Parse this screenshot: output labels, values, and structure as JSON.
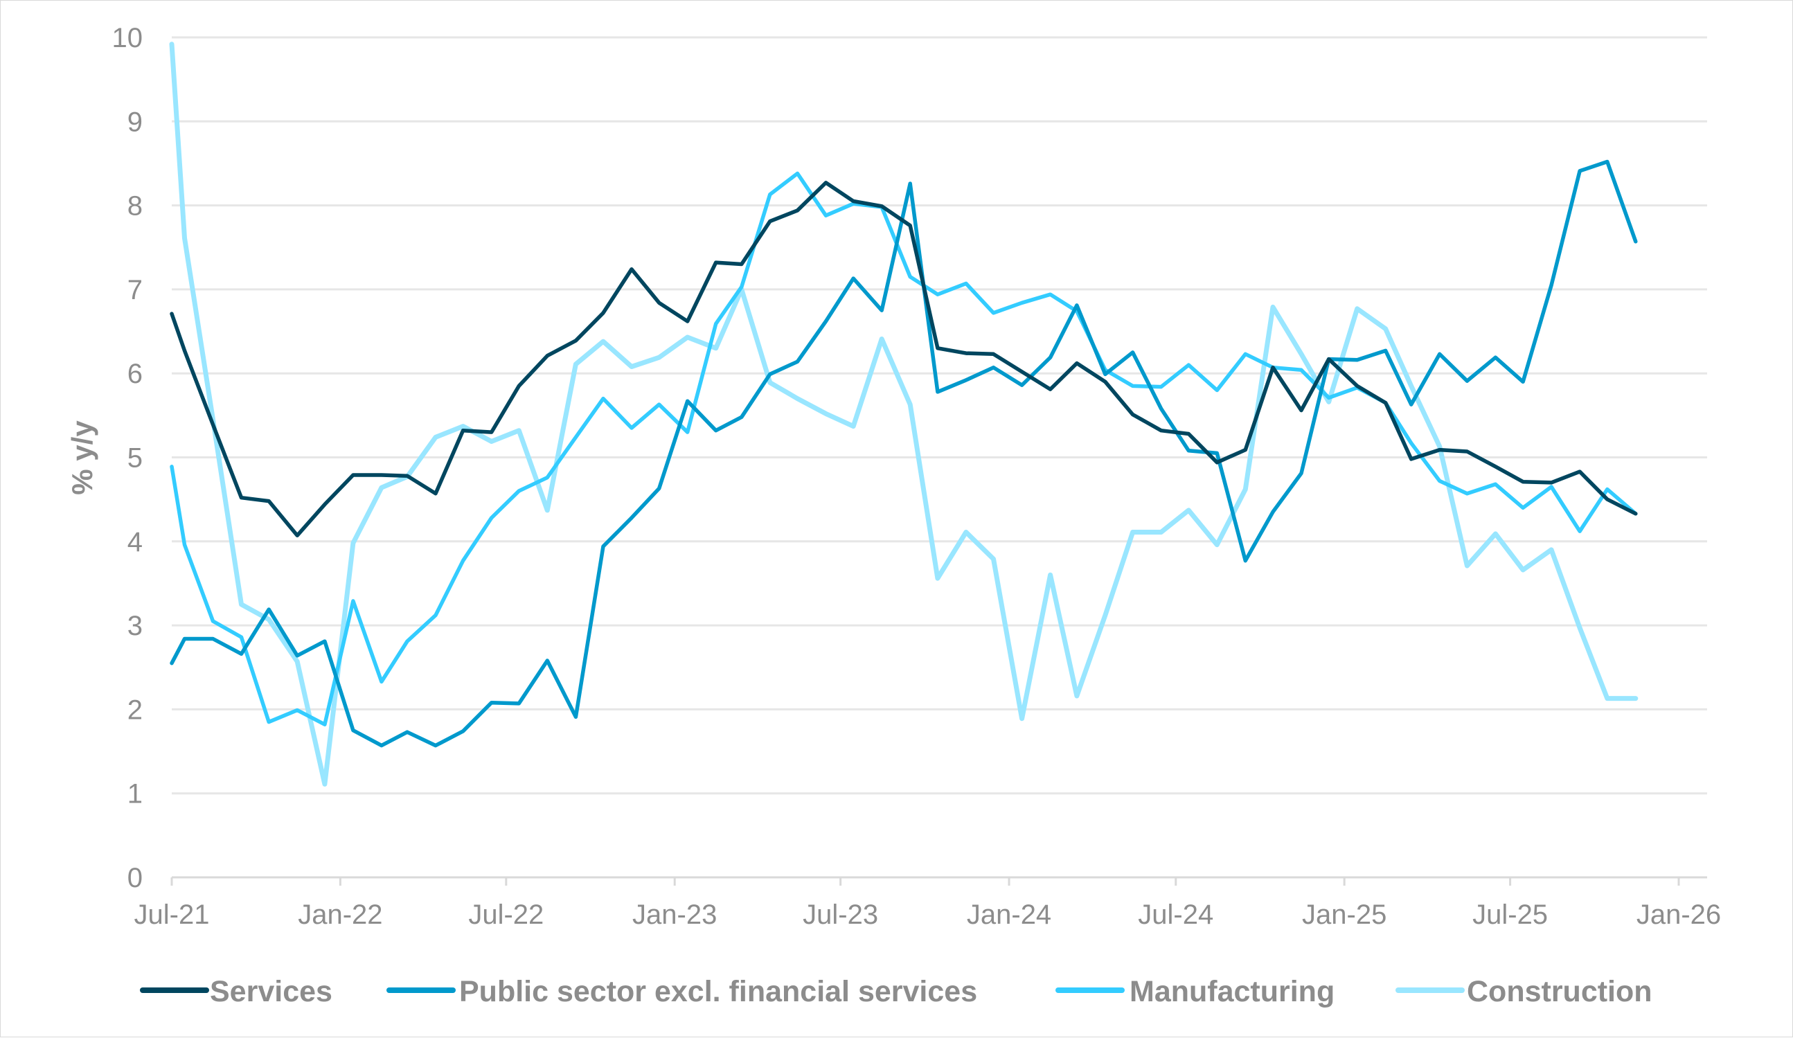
{
  "chart_data": {
    "type": "line",
    "title": "",
    "xlabel": "",
    "ylabel": "% y/y",
    "ylim": [
      0,
      10
    ],
    "y_ticks": [
      "0",
      "1",
      "2",
      "3",
      "4",
      "5",
      "6",
      "7",
      "8",
      "9",
      "10"
    ],
    "xlim": [
      "2021-07-01",
      "2026-02-01"
    ],
    "x_ticks": [
      {
        "date": "2021-07-01",
        "label": "Jul-21"
      },
      {
        "date": "2022-01-01",
        "label": "Jan-22"
      },
      {
        "date": "2022-07-01",
        "label": "Jul-22"
      },
      {
        "date": "2023-01-01",
        "label": "Jan-23"
      },
      {
        "date": "2023-07-01",
        "label": "Jul-23"
      },
      {
        "date": "2024-01-01",
        "label": "Jan-24"
      },
      {
        "date": "2024-07-01",
        "label": "Jul-24"
      },
      {
        "date": "2025-01-01",
        "label": "Jan-25"
      },
      {
        "date": "2025-07-01",
        "label": "Jul-25"
      },
      {
        "date": "2026-01-01",
        "label": "Jan-26"
      }
    ],
    "grid": "horizontal",
    "legend_position": "bottom",
    "x": [
      "2021-07-01",
      "2021-07-15",
      "2021-08-15",
      "2021-09-15",
      "2021-10-15",
      "2021-11-15",
      "2021-12-15",
      "2022-01-15",
      "2022-02-15",
      "2022-03-15",
      "2022-04-15",
      "2022-05-15",
      "2022-06-15",
      "2022-07-15",
      "2022-08-15",
      "2022-09-15",
      "2022-10-15",
      "2022-11-15",
      "2022-12-15",
      "2023-01-15",
      "2023-02-15",
      "2023-03-15",
      "2023-04-15",
      "2023-05-15",
      "2023-06-15",
      "2023-07-15",
      "2023-08-15",
      "2023-09-15",
      "2023-10-15",
      "2023-11-15",
      "2023-12-15",
      "2024-01-15",
      "2024-02-15",
      "2024-03-15",
      "2024-04-15",
      "2024-05-15",
      "2024-06-15",
      "2024-07-15",
      "2024-08-15",
      "2024-09-15",
      "2024-10-15",
      "2024-11-15",
      "2024-12-15",
      "2025-01-15",
      "2025-02-15",
      "2025-03-15",
      "2025-04-15",
      "2025-05-15",
      "2025-06-15",
      "2025-07-15",
      "2025-08-15",
      "2025-09-15",
      "2025-10-15",
      "2025-11-15"
    ],
    "series": [
      {
        "name": "Services",
        "color": "#00465f",
        "values": [
          6.71,
          6.27,
          5.39,
          4.52,
          4.48,
          4.07,
          4.44,
          4.79,
          4.79,
          4.78,
          4.57,
          5.32,
          5.3,
          5.85,
          6.21,
          6.39,
          6.72,
          7.24,
          6.84,
          6.62,
          7.32,
          7.3,
          7.81,
          7.94,
          8.27,
          8.05,
          7.99,
          7.76,
          6.3,
          6.24,
          6.23,
          6.02,
          5.81,
          6.12,
          5.9,
          5.51,
          5.32,
          5.28,
          4.94,
          5.09,
          6.07,
          5.56,
          6.17,
          5.85,
          5.65,
          4.98,
          5.09,
          5.07,
          4.89,
          4.71,
          4.7,
          4.83,
          4.5,
          4.33
        ]
      },
      {
        "name": "Public sector excl. financial services",
        "color": "#0099cc",
        "values": [
          2.55,
          2.84,
          2.84,
          2.66,
          3.19,
          2.64,
          2.81,
          1.75,
          1.57,
          1.73,
          1.57,
          1.74,
          2.08,
          2.07,
          2.58,
          1.91,
          3.94,
          4.28,
          4.63,
          5.67,
          5.32,
          5.48,
          5.99,
          6.14,
          6.62,
          7.13,
          6.75,
          8.26,
          5.78,
          5.92,
          6.07,
          5.86,
          6.19,
          6.81,
          5.99,
          6.25,
          5.58,
          5.08,
          5.05,
          3.77,
          4.35,
          4.81,
          6.17,
          6.16,
          6.27,
          5.63,
          6.23,
          5.91,
          6.19,
          5.9,
          7.05,
          8.41,
          8.52,
          7.57
        ]
      },
      {
        "name": "Manufacturing",
        "color": "#33ccff",
        "values": [
          4.89,
          3.96,
          3.05,
          2.86,
          1.85,
          1.99,
          1.82,
          3.29,
          2.33,
          2.81,
          3.12,
          3.77,
          4.28,
          4.6,
          4.76,
          5.24,
          5.7,
          5.35,
          5.63,
          5.3,
          6.59,
          7.03,
          8.13,
          8.38,
          7.88,
          8.02,
          7.98,
          7.15,
          6.94,
          7.07,
          6.72,
          6.84,
          6.94,
          6.74,
          6.04,
          5.85,
          5.84,
          6.1,
          5.8,
          6.23,
          6.07,
          6.04,
          5.71,
          5.83,
          5.65,
          5.17,
          4.72,
          4.57,
          4.68,
          4.4,
          4.65,
          4.12,
          4.62,
          4.33
        ]
      },
      {
        "name": "Construction",
        "color": "#99e6ff",
        "values": [
          9.92,
          7.61,
          5.45,
          3.25,
          3.07,
          2.57,
          1.11,
          3.98,
          4.64,
          4.77,
          5.24,
          5.37,
          5.19,
          5.32,
          4.37,
          6.11,
          6.38,
          6.08,
          6.19,
          6.43,
          6.3,
          7.0,
          5.89,
          5.7,
          5.52,
          5.37,
          6.41,
          5.63,
          3.56,
          4.11,
          3.79,
          1.89,
          3.6,
          2.16,
          3.12,
          4.11,
          4.11,
          4.37,
          3.96,
          4.62,
          6.79,
          6.23,
          5.66,
          6.77,
          6.53,
          5.85,
          5.13,
          3.71,
          4.09,
          3.66,
          3.9,
          2.97,
          2.13,
          2.13
        ]
      }
    ]
  }
}
